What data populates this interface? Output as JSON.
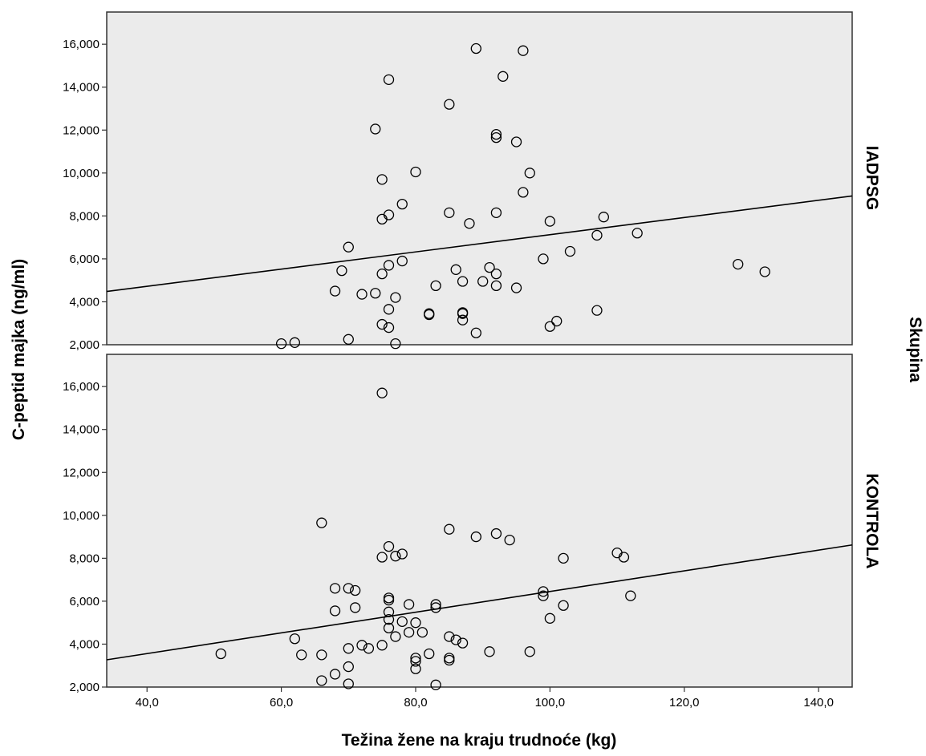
{
  "chart_data": {
    "type": "scatter",
    "xlabel": "Težina žene na kraju trudnoće (kg)",
    "ylabel": "C-peptid majka (ng/ml)",
    "facet_label": "Skupina",
    "xlim": [
      34,
      145
    ],
    "ylim": [
      2000,
      17500
    ],
    "x_ticks": [
      40,
      60,
      80,
      100,
      120,
      140
    ],
    "x_tick_labels": [
      "40,0",
      "60,0",
      "80,0",
      "100,0",
      "120,0",
      "140,0"
    ],
    "y_ticks": [
      2000,
      4000,
      6000,
      8000,
      10000,
      12000,
      14000,
      16000
    ],
    "y_tick_labels": [
      "2,000",
      "4,000",
      "6,000",
      "8,000",
      "10,000",
      "12,000",
      "14,000",
      "16,000"
    ],
    "grid": false,
    "colors": {
      "panel_bg": "#ebebeb",
      "marker": "#000000",
      "line": "#000000"
    },
    "panels": [
      {
        "name": "IADPSG",
        "fit_line": {
          "x": [
            34,
            145
          ],
          "y": [
            4480,
            8930
          ]
        },
        "points": [
          [
            60,
            2050
          ],
          [
            62,
            2100
          ],
          [
            70,
            2250
          ],
          [
            77,
            2050
          ],
          [
            89,
            15800
          ],
          [
            96,
            15700
          ],
          [
            76,
            14350
          ],
          [
            93,
            14500
          ],
          [
            85,
            13200
          ],
          [
            74,
            12050
          ],
          [
            92,
            11800
          ],
          [
            92,
            11650
          ],
          [
            95,
            11450
          ],
          [
            80,
            10050
          ],
          [
            97,
            10000
          ],
          [
            75,
            9700
          ],
          [
            96,
            9100
          ],
          [
            78,
            8550
          ],
          [
            76,
            8050
          ],
          [
            75,
            7850
          ],
          [
            85,
            8150
          ],
          [
            92,
            8150
          ],
          [
            88,
            7650
          ],
          [
            100,
            7750
          ],
          [
            108,
            7950
          ],
          [
            107,
            7100
          ],
          [
            113,
            7200
          ],
          [
            70,
            6550
          ],
          [
            103,
            6350
          ],
          [
            99,
            6000
          ],
          [
            78,
            5900
          ],
          [
            76,
            5700
          ],
          [
            69,
            5450
          ],
          [
            75,
            5300
          ],
          [
            86,
            5500
          ],
          [
            91,
            5600
          ],
          [
            92,
            5300
          ],
          [
            128,
            5750
          ],
          [
            132,
            5400
          ],
          [
            68,
            4500
          ],
          [
            72,
            4350
          ],
          [
            74,
            4400
          ],
          [
            77,
            4200
          ],
          [
            83,
            4750
          ],
          [
            87,
            4950
          ],
          [
            90,
            4950
          ],
          [
            92,
            4750
          ],
          [
            95,
            4650
          ],
          [
            76,
            3650
          ],
          [
            82,
            3400
          ],
          [
            82,
            3450
          ],
          [
            87,
            3450
          ],
          [
            87,
            3500
          ],
          [
            87,
            3150
          ],
          [
            107,
            3600
          ],
          [
            75,
            2950
          ],
          [
            76,
            2800
          ],
          [
            89,
            2550
          ],
          [
            100,
            2850
          ],
          [
            101,
            3100
          ]
        ]
      },
      {
        "name": "KONTROLA",
        "fit_line": {
          "x": [
            34,
            145
          ],
          "y": [
            3270,
            8620
          ]
        },
        "points": [
          [
            75,
            15700
          ],
          [
            66,
            9650
          ],
          [
            85,
            9350
          ],
          [
            89,
            9000
          ],
          [
            92,
            9150
          ],
          [
            94,
            8850
          ],
          [
            76,
            8550
          ],
          [
            75,
            8050
          ],
          [
            77,
            8100
          ],
          [
            78,
            8200
          ],
          [
            102,
            8000
          ],
          [
            110,
            8250
          ],
          [
            111,
            8050
          ],
          [
            68,
            6600
          ],
          [
            70,
            6600
          ],
          [
            71,
            6500
          ],
          [
            99,
            6450
          ],
          [
            99,
            6250
          ],
          [
            112,
            6250
          ],
          [
            76,
            6150
          ],
          [
            76,
            6050
          ],
          [
            79,
            5850
          ],
          [
            83,
            5850
          ],
          [
            83,
            5700
          ],
          [
            68,
            5550
          ],
          [
            71,
            5700
          ],
          [
            76,
            5500
          ],
          [
            102,
            5800
          ],
          [
            76,
            5150
          ],
          [
            78,
            5050
          ],
          [
            80,
            5000
          ],
          [
            76,
            4750
          ],
          [
            79,
            4550
          ],
          [
            81,
            4550
          ],
          [
            77,
            4350
          ],
          [
            100,
            5200
          ],
          [
            62,
            4250
          ],
          [
            85,
            4350
          ],
          [
            86,
            4200
          ],
          [
            87,
            4050
          ],
          [
            72,
            3950
          ],
          [
            73,
            3800
          ],
          [
            75,
            3950
          ],
          [
            70,
            3800
          ],
          [
            82,
            3550
          ],
          [
            85,
            3350
          ],
          [
            85,
            3250
          ],
          [
            80,
            3350
          ],
          [
            80,
            3200
          ],
          [
            91,
            3650
          ],
          [
            97,
            3650
          ],
          [
            51,
            3550
          ],
          [
            63,
            3500
          ],
          [
            66,
            3500
          ],
          [
            80,
            2850
          ],
          [
            70,
            2950
          ],
          [
            68,
            2600
          ],
          [
            66,
            2300
          ],
          [
            70,
            2150
          ],
          [
            83,
            2100
          ]
        ]
      }
    ]
  }
}
